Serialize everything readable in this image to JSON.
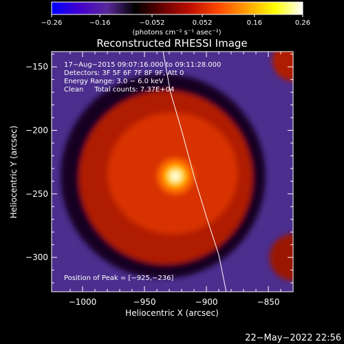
{
  "chart_data": {
    "type": "heatmap",
    "title": "Reconstructed RHESSI Image",
    "xlabel": "Heliocentric X (arcsec)",
    "ylabel": "Heliocentric Y (arcsec)",
    "xlim": [
      -1025,
      -830
    ],
    "ylim": [
      -327,
      -138
    ],
    "x_ticks": [
      -1000,
      -950,
      -900,
      -850
    ],
    "x_tick_labels": [
      "−1000",
      "−950",
      "−900",
      "−850"
    ],
    "y_ticks": [
      -150,
      -200,
      -250,
      -300
    ],
    "y_tick_labels": [
      "−150",
      "−200",
      "−250",
      "−300"
    ],
    "colorbar": {
      "range": [
        -0.26,
        0.26
      ],
      "ticks": [
        -0.26,
        -0.16,
        -0.052,
        0.052,
        0.16,
        0.26
      ],
      "tick_labels": [
        "−0.26",
        "−0.16",
        "−0.052",
        "0.052",
        "0.16",
        "0.26"
      ],
      "unit_label": "(photons cm⁻² s⁻¹ asec⁻²)",
      "colors": [
        "#0000ff",
        "#4400cc",
        "#5a2a99",
        "#000000",
        "#6a0000",
        "#c01000",
        "#ff4a00",
        "#ffa000",
        "#ffff00",
        "#ffffff"
      ]
    },
    "peak": {
      "x": -925,
      "y": -236,
      "value": 0.26
    },
    "ring": {
      "x": -935,
      "y": -236,
      "inner_radius": 70,
      "value": 0.09
    },
    "annotations": [
      "17−Aug−2015 09:07:16.000 to 09:11:28.000",
      "Detectors: 3F 5F 6F 7F 8F 9F, Att 0",
      "Energy Range: 3.0 − 6.0 keV",
      "Clean     Total counts: 7.37E+04"
    ],
    "peak_label": "Position of Peak = [−925,−236]",
    "limb": {
      "points": [
        [
          -935,
          -138
        ],
        [
          -929,
          -170
        ],
        [
          -920,
          -200
        ],
        [
          -910,
          -236
        ],
        [
          -900,
          -268
        ],
        [
          -890,
          -298
        ],
        [
          -884,
          -327
        ]
      ]
    },
    "timestamp": "22−May−2022 22:56"
  }
}
